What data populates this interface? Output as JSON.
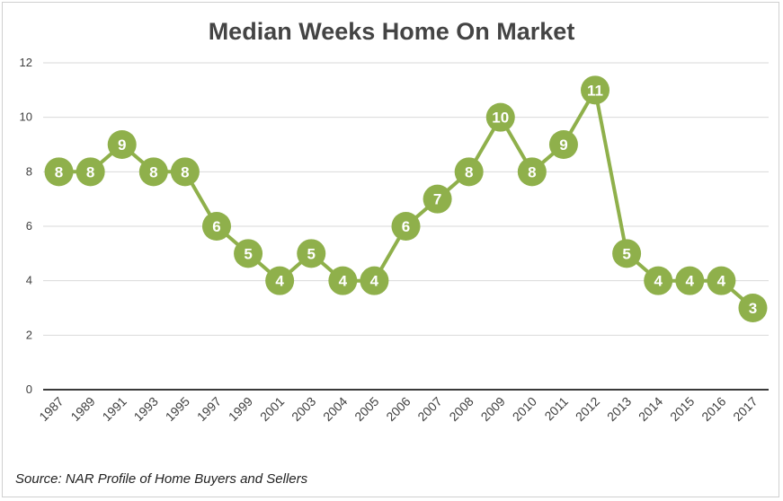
{
  "chart_data": {
    "type": "line",
    "title": "Median Weeks Home On Market",
    "source": "Source: NAR Profile of Home Buyers and Sellers",
    "xlabel": "",
    "ylabel": "",
    "categories": [
      "1987",
      "1989",
      "1991",
      "1993",
      "1995",
      "1997",
      "1999",
      "2001",
      "2003",
      "2004",
      "2005",
      "2006",
      "2007",
      "2008",
      "2009",
      "2010",
      "2011",
      "2012",
      "2013",
      "2014",
      "2015",
      "2016",
      "2017"
    ],
    "series": [
      {
        "values": [
          8,
          8,
          9,
          8,
          8,
          6,
          5,
          4,
          5,
          4,
          4,
          6,
          7,
          8,
          10,
          8,
          9,
          11,
          5,
          4,
          4,
          4,
          3
        ]
      }
    ],
    "ylim": [
      0,
      12
    ],
    "yticks": [
      0,
      2,
      4,
      6,
      8,
      10,
      12
    ],
    "grid": true,
    "data_labels": true,
    "colors": {
      "series": "#8fb04b",
      "grid": "#d9d9d9",
      "axis": "#3a3a3a",
      "label": "#ffffff"
    }
  }
}
